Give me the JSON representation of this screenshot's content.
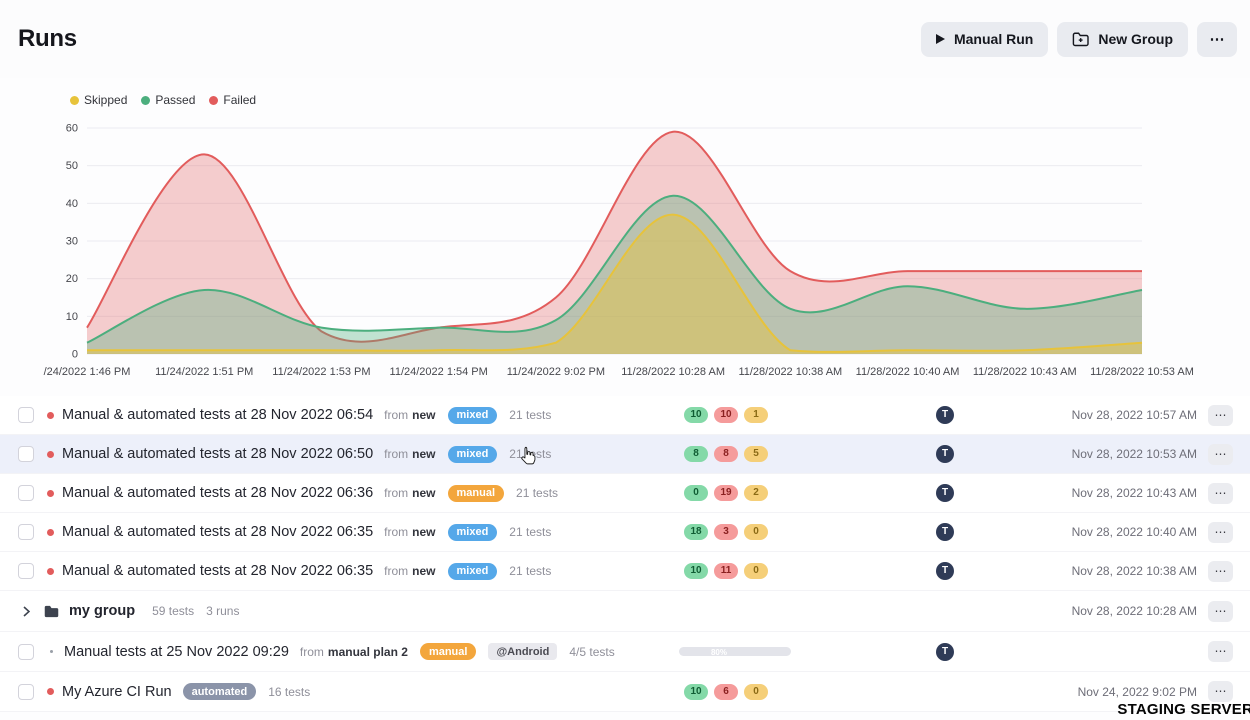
{
  "page": {
    "title": "Runs",
    "watermark": "STAGING SERVER"
  },
  "header": {
    "manual_run_label": "Manual Run",
    "new_group_label": "New Group",
    "more_label": "⋯"
  },
  "ui": {
    "more": "⋯"
  },
  "chart_data": {
    "type": "area",
    "title": "",
    "xlabel": "",
    "ylabel": "",
    "grid": true,
    "legend_position": "top-left",
    "ylim": [
      0,
      60
    ],
    "yticks": [
      0,
      10,
      20,
      30,
      40,
      50,
      60
    ],
    "x_labels": [
      "/24/2022 1:46 PM",
      "11/24/2022 1:51 PM",
      "11/24/2022 1:53 PM",
      "11/24/2022 1:54 PM",
      "11/24/2022 9:02 PM",
      "11/28/2022 10:28 AM",
      "11/28/2022 10:38 AM",
      "11/28/2022 10:40 AM",
      "11/28/2022 10:43 AM",
      "11/28/2022 10:53 AM"
    ],
    "series": [
      {
        "name": "Failed",
        "color": "#e25c5c",
        "fill": "rgba(226,92,92,0.30)",
        "values": [
          7,
          53,
          6,
          7,
          15,
          59,
          22,
          22,
          22,
          22
        ]
      },
      {
        "name": "Passed",
        "color": "#4cae7e",
        "fill": "rgba(76,174,126,0.35)",
        "values": [
          3,
          17,
          7,
          7,
          9,
          42,
          12,
          18,
          12,
          17
        ]
      },
      {
        "name": "Skipped",
        "color": "#e7c33b",
        "fill": "rgba(231,195,59,0.45)",
        "values": [
          1,
          1,
          1,
          1,
          3,
          37,
          1,
          1,
          1,
          3
        ]
      }
    ],
    "legend": [
      {
        "label": "Skipped",
        "color": "#e7c33b"
      },
      {
        "label": "Passed",
        "color": "#4cae7e"
      },
      {
        "label": "Failed",
        "color": "#e25c5c"
      }
    ]
  },
  "rows": [
    {
      "kind": "run",
      "title": "Manual & automated tests at 28 Nov 2022 06:54",
      "from_label": "from",
      "plan": "new",
      "badge": "mixed",
      "tests": "21 tests",
      "passed": "10",
      "failed": "10",
      "skipped": "1",
      "avatar": "T",
      "date": "Nov 28, 2022 10:57 AM"
    },
    {
      "kind": "run",
      "title": "Manual & automated tests at 28 Nov 2022 06:50",
      "from_label": "from",
      "plan": "new",
      "badge": "mixed",
      "tests": "21 tests",
      "passed": "8",
      "failed": "8",
      "skipped": "5",
      "avatar": "T",
      "date": "Nov 28, 2022 10:53 AM"
    },
    {
      "kind": "run",
      "title": "Manual & automated tests at 28 Nov 2022 06:36",
      "from_label": "from",
      "plan": "new",
      "badge": "manual",
      "tests": "21 tests",
      "passed": "0",
      "failed": "19",
      "skipped": "2",
      "avatar": "T",
      "date": "Nov 28, 2022 10:43 AM"
    },
    {
      "kind": "run",
      "title": "Manual & automated tests at 28 Nov 2022 06:35",
      "from_label": "from",
      "plan": "new",
      "badge": "mixed",
      "tests": "21 tests",
      "passed": "18",
      "failed": "3",
      "skipped": "0",
      "avatar": "T",
      "date": "Nov 28, 2022 10:40 AM"
    },
    {
      "kind": "run",
      "title": "Manual & automated tests at 28 Nov 2022 06:35",
      "from_label": "from",
      "plan": "new",
      "badge": "mixed",
      "tests": "21 tests",
      "passed": "10",
      "failed": "11",
      "skipped": "0",
      "avatar": "T",
      "date": "Nov 28, 2022 10:38 AM"
    },
    {
      "kind": "group",
      "name": "my group",
      "tests": "59 tests",
      "runs": "3 runs",
      "date": "Nov 28, 2022 10:28 AM"
    },
    {
      "kind": "plan-run",
      "title": "Manual tests at 25 Nov 2022 09:29",
      "from_label": "from",
      "plan": "manual plan 2",
      "badge": "manual",
      "tag": "@Android",
      "tests": "4/5 tests",
      "progress_label": "80%",
      "progress_value": 80,
      "avatar": "T"
    },
    {
      "kind": "ci-run",
      "title": "My Azure CI Run",
      "badge": "automated",
      "tests": "16 tests",
      "passed": "10",
      "failed": "6",
      "skipped": "0",
      "date": "Nov 24, 2022 9:02 PM"
    }
  ]
}
